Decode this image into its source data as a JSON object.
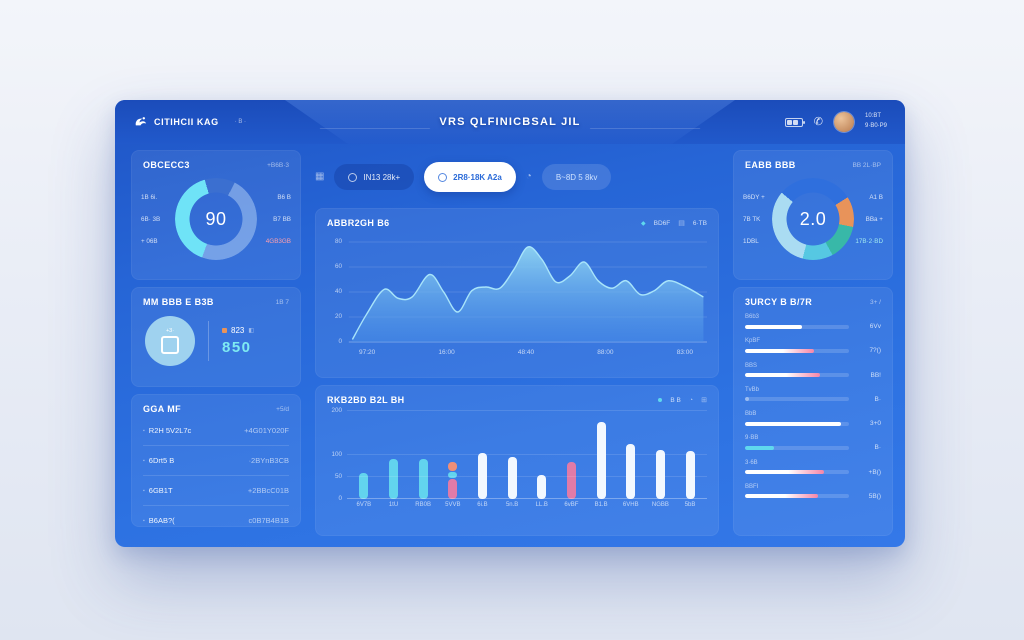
{
  "page": {
    "title": "VRS QLFINICBSAL JIL"
  },
  "header": {
    "logo_text": "CITIHCII KAG",
    "logo_dots": "· B ·",
    "time_line1": "10:BT",
    "time_line2": "9·B0·P9"
  },
  "left": {
    "gauge": {
      "title": "OBCECC3",
      "link": "+B6B·3",
      "value": "90",
      "labels_left": [
        "1B 6i.",
        "6B· 3B",
        "+ 06B"
      ],
      "labels_right": [
        "B6 B",
        "B7 BB",
        "4GB3GB"
      ],
      "alert_index": 2,
      "start_deg": 200,
      "segments": [
        {
          "color": "#6fe3f7",
          "pct": 40
        },
        {
          "color": "#3b6fd0",
          "pct": 12
        },
        {
          "color": "rgba(195,222,250,0.45)",
          "pct": 48
        }
      ]
    },
    "device": {
      "title": "MM BBB E B3B",
      "link": "1B 7",
      "tag": "+3·",
      "dot_label": "823",
      "value": "850"
    },
    "list": {
      "title": "GGA MF",
      "link": "+5/d",
      "rows": [
        {
          "label": "R2H 5V2L7c",
          "value": "+4G01Y020F"
        },
        {
          "label": "6Drt5 B",
          "value": "·2BYnB3CB"
        },
        {
          "label": "6GB1T",
          "value": "+2BBcC01B"
        },
        {
          "label": "B6AB?(",
          "value": "c0B7B4B1B"
        }
      ]
    }
  },
  "center": {
    "filters": {
      "pill1": "IN13 28k+",
      "pill2": "2R8·18K A2a",
      "pill3": "B~8D 5 8kv"
    },
    "area": {
      "title": "ABBR2GH B6",
      "legend": [
        "BD6F",
        "6·TB"
      ],
      "chart_data": {
        "type": "area",
        "x_labels": [
          "97:20",
          "16:00",
          "48:40",
          "88:00",
          "83:00"
        ],
        "y_ticks": [
          "0",
          "20",
          "40",
          "60",
          "80"
        ],
        "ylim": [
          0,
          80
        ],
        "points": [
          [
            0,
            2
          ],
          [
            4,
            22
          ],
          [
            9,
            42
          ],
          [
            13,
            35
          ],
          [
            17,
            36
          ],
          [
            22,
            54
          ],
          [
            26,
            40
          ],
          [
            30,
            24
          ],
          [
            34,
            41
          ],
          [
            38,
            44
          ],
          [
            42,
            43
          ],
          [
            46,
            58
          ],
          [
            50,
            76
          ],
          [
            54,
            66
          ],
          [
            58,
            48
          ],
          [
            62,
            53
          ],
          [
            66,
            64
          ],
          [
            70,
            49
          ],
          [
            74,
            43
          ],
          [
            78,
            49
          ],
          [
            82,
            38
          ],
          [
            86,
            41
          ],
          [
            90,
            49
          ],
          [
            95,
            44
          ],
          [
            100,
            36
          ]
        ]
      }
    },
    "bar": {
      "title": "RKB2BD B2L BH",
      "legend": "B B",
      "chart_data": {
        "type": "bar",
        "categories": [
          "6V7B",
          "1tU",
          "RB0B",
          "5VVB",
          "6i.B",
          "5n.B",
          "LL.B",
          "6vBF",
          "B1.B",
          "6VHB",
          "NGBB",
          "5bB"
        ],
        "values": [
          60,
          90,
          90,
          80,
          105,
          96,
          55,
          85,
          176,
          124,
          112,
          108
        ],
        "colors": [
          "cyan",
          "cyan",
          "cyan",
          "stack",
          "white",
          "white",
          "white",
          "pink",
          "white",
          "white",
          "white",
          "white"
        ],
        "ylim": [
          0,
          200
        ],
        "y_ticks": [
          {
            "label": "0",
            "pos": 0
          },
          {
            "label": "50",
            "pos": 0.25
          },
          {
            "label": "100",
            "pos": 0.5
          },
          {
            "label": "200",
            "pos": 1
          }
        ]
      }
    }
  },
  "right": {
    "donut": {
      "title": "EABB BBB",
      "link": "BB 2L·BP",
      "value": "2.0",
      "labels_left": [
        "B6DY +",
        "7B TK",
        "1DBL"
      ],
      "labels_right": [
        "A1 B",
        "BBa +",
        "17B·2·BD"
      ],
      "start_deg": -50,
      "segments": [
        {
          "color": "#2f6fdd",
          "pct": 30
        },
        {
          "color": "#e8935a",
          "pct": 12
        },
        {
          "color": "#38b8a8",
          "pct": 14
        },
        {
          "color": "#56c8e2",
          "pct": 12
        },
        {
          "color": "#aadcf2",
          "pct": 32
        }
      ]
    },
    "progress": {
      "title": "3URCY B B/7R",
      "link": "3+ /",
      "rows": [
        {
          "label": "B6b3",
          "value": "6Vv",
          "pct": 55,
          "type": "white"
        },
        {
          "label": "KpBF",
          "value": "7?()",
          "pct": 66,
          "type": "pink"
        },
        {
          "label": "BBS",
          "value": "BB!",
          "pct": 72,
          "type": "pink"
        },
        {
          "label": "TvBb",
          "value": "B·",
          "pct": 4,
          "type": "faint"
        },
        {
          "label": "BbB",
          "value": "3+0",
          "pct": 92,
          "type": "white"
        },
        {
          "label": "9·BB",
          "value": "B·",
          "pct": 28,
          "type": "cyan"
        },
        {
          "label": "3·6B",
          "value": "+B()",
          "pct": 76,
          "type": "pink"
        },
        {
          "label": "BBFI",
          "value": "5B()",
          "pct": 70,
          "type": "pink"
        }
      ]
    }
  },
  "colors": {
    "accent_cyan": "#5fd8ee",
    "bar_white": "#f2f8ff",
    "bar_cyan": "#62d4ee",
    "pink": "#e07ba8",
    "salmon": "#ef8f78",
    "orange": "#e8935a",
    "alert": "#ff9fae"
  }
}
